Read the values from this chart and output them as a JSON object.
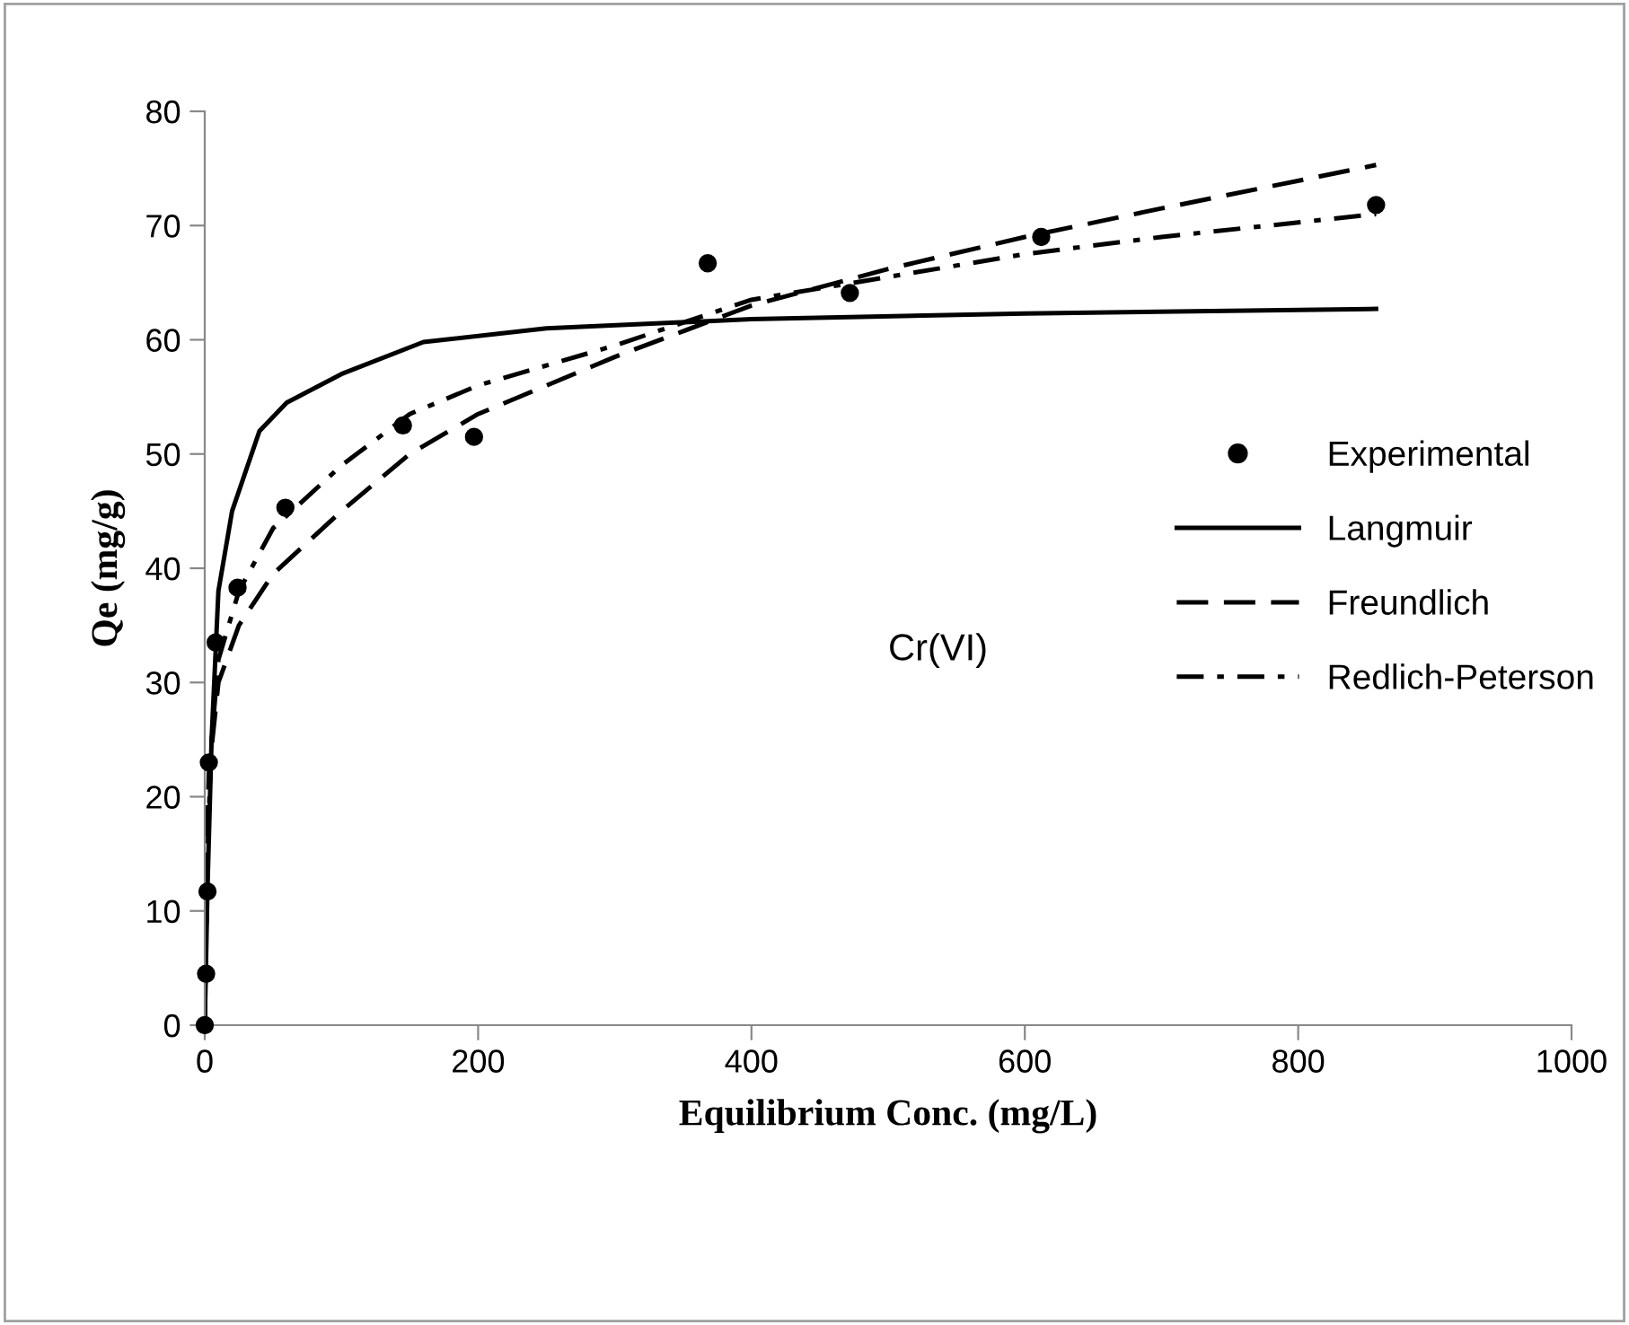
{
  "chart_data": {
    "type": "scatter",
    "xlabel": "Equilibrium Conc. (mg/L)",
    "ylabel": "Qe (mg/g)",
    "xlim": [
      0,
      1000
    ],
    "ylim": [
      0,
      80
    ],
    "xticks": [
      0,
      200,
      400,
      600,
      800,
      1000
    ],
    "yticks": [
      0,
      10,
      20,
      30,
      40,
      50,
      60,
      70,
      80
    ],
    "grid": false,
    "legend": "right",
    "annotations": [
      "Cr(VI)"
    ],
    "series": [
      {
        "name": "Experimental",
        "color": "#000000",
        "marker": "circle",
        "x": [
          0,
          1,
          2,
          3,
          8,
          24,
          59,
          145,
          197,
          368,
          472,
          612,
          857
        ],
        "values": [
          0,
          4.5,
          11.7,
          23,
          33.5,
          38.3,
          45.3,
          52.5,
          51.5,
          66.7,
          64.1,
          69,
          71.8
        ]
      },
      {
        "name": "Langmuir",
        "type": "line",
        "color": "#000000",
        "line_style": "solid",
        "x": [
          0,
          2,
          5,
          10,
          20,
          40,
          60,
          100,
          160,
          250,
          400,
          600,
          857
        ],
        "values": [
          0,
          12,
          25,
          38,
          45,
          52,
          54.5,
          57,
          59.8,
          61,
          61.8,
          62.3,
          62.7
        ]
      },
      {
        "name": "Freundlich",
        "type": "line",
        "color": "#000000",
        "line_style": "dashed",
        "x": [
          0,
          1,
          3,
          10,
          25,
          50,
          100,
          150,
          200,
          300,
          400,
          500,
          600,
          700,
          857
        ],
        "values": [
          0,
          14,
          22,
          30,
          35,
          39.5,
          45,
          50,
          53.5,
          58.5,
          63,
          66.2,
          69,
          71.5,
          75.3
        ]
      },
      {
        "name": "Redlich-Peterson",
        "type": "line",
        "color": "#000000",
        "line_style": "dashdot",
        "x": [
          0,
          2,
          5,
          10,
          25,
          50,
          100,
          150,
          200,
          300,
          400,
          500,
          600,
          700,
          857
        ],
        "values": [
          0,
          15,
          25,
          32,
          38,
          43.5,
          49,
          53.5,
          56,
          59.5,
          63.5,
          65.5,
          67.5,
          69,
          71
        ]
      }
    ]
  }
}
